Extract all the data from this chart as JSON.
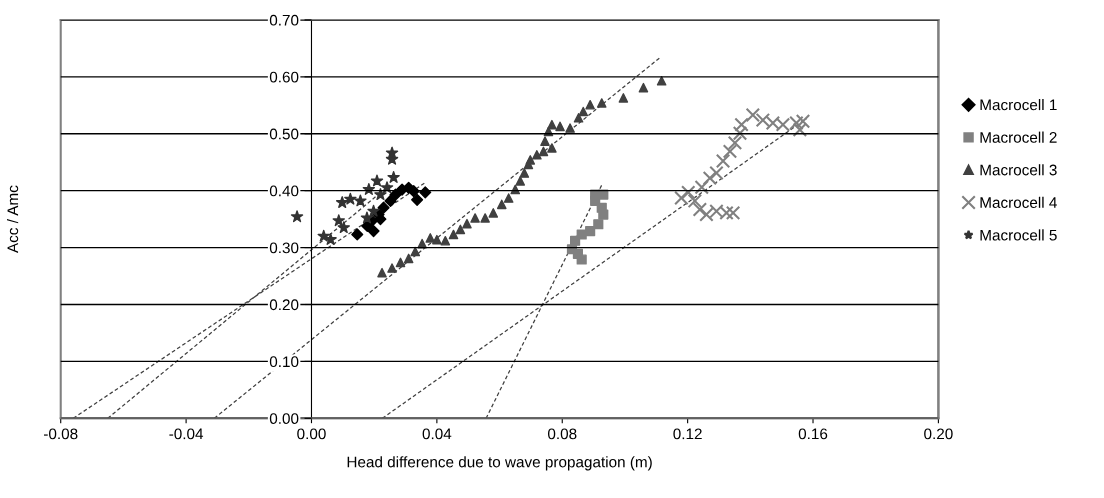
{
  "chart_data": {
    "type": "scatter",
    "xlabel": "Head difference due to wave propagation (m)",
    "ylabel": "Acc / Amc",
    "xlim": [
      -0.08,
      0.2
    ],
    "ylim": [
      0,
      0.7
    ],
    "xticks": [
      {
        "value": -0.08,
        "label": "-0.08"
      },
      {
        "value": -0.04,
        "label": "-0.04"
      },
      {
        "value": 0,
        "label": "0.00"
      },
      {
        "value": 0.04,
        "label": "0.04"
      },
      {
        "value": 0.08,
        "label": "0.08"
      },
      {
        "value": 0.12,
        "label": "0.12"
      },
      {
        "value": 0.16,
        "label": "0.16"
      },
      {
        "value": 0.2,
        "label": "0.20"
      }
    ],
    "yticks": [
      {
        "value": 0,
        "label": "0.00"
      },
      {
        "value": 0.1,
        "label": "0.10"
      },
      {
        "value": 0.2,
        "label": "0.20"
      },
      {
        "value": 0.3,
        "label": "0.30"
      },
      {
        "value": 0.4,
        "label": "0.40"
      },
      {
        "value": 0.5,
        "label": "0.50"
      },
      {
        "value": 0.6,
        "label": "0.60"
      },
      {
        "value": 0.7,
        "label": "0.70"
      }
    ],
    "grid": "y",
    "legend": "right",
    "series": [
      {
        "name": "Macrocell 1",
        "color": "#000000",
        "marker": "diamond",
        "x": [
          0.0146,
          0.0178,
          0.0198,
          0.0193,
          0.022,
          0.0214,
          0.023,
          0.0252,
          0.0268,
          0.0289,
          0.031,
          0.0326,
          0.0337,
          0.0363
        ],
        "values": [
          0.323,
          0.338,
          0.329,
          0.347,
          0.35,
          0.358,
          0.37,
          0.382,
          0.393,
          0.402,
          0.405,
          0.399,
          0.384,
          0.397
        ]
      },
      {
        "name": "Macrocell 2",
        "color": "#808080",
        "marker": "square",
        "x": [
          0.0862,
          0.085,
          0.0831,
          0.0841,
          0.0862,
          0.0889,
          0.0915,
          0.0931,
          0.0926,
          0.0905,
          0.0905,
          0.0931
        ],
        "values": [
          0.279,
          0.289,
          0.297,
          0.312,
          0.323,
          0.329,
          0.341,
          0.358,
          0.37,
          0.382,
          0.393,
          0.393
        ]
      },
      {
        "name": "Macrocell 3",
        "color": "#404040",
        "marker": "triangle",
        "x": [
          0.0225,
          0.0257,
          0.0284,
          0.031,
          0.0331,
          0.0353,
          0.0379,
          0.04,
          0.0427,
          0.0453,
          0.0475,
          0.0496,
          0.0522,
          0.0554,
          0.058,
          0.0607,
          0.0629,
          0.065,
          0.0666,
          0.0679,
          0.0692,
          0.0698,
          0.0719,
          0.074,
          0.0767,
          0.0745,
          0.0756,
          0.0767,
          0.0793,
          0.0825,
          0.0852,
          0.0867,
          0.0889,
          0.0926,
          0.0995,
          0.1059,
          0.1117
        ],
        "values": [
          0.256,
          0.264,
          0.274,
          0.281,
          0.293,
          0.307,
          0.317,
          0.314,
          0.312,
          0.323,
          0.332,
          0.342,
          0.352,
          0.352,
          0.361,
          0.376,
          0.387,
          0.402,
          0.417,
          0.431,
          0.446,
          0.454,
          0.463,
          0.469,
          0.475,
          0.487,
          0.504,
          0.516,
          0.513,
          0.51,
          0.528,
          0.539,
          0.551,
          0.554,
          0.563,
          0.581,
          0.593
        ]
      },
      {
        "name": "Macrocell 4",
        "color": "#808080",
        "marker": "cross",
        "x": [
          0.1345,
          0.1324,
          0.1292,
          0.126,
          0.1239,
          0.1223,
          0.118,
          0.1202,
          0.1245,
          0.1271,
          0.1292,
          0.1313,
          0.1335,
          0.1351,
          0.1367,
          0.1372,
          0.1408,
          0.144,
          0.1472,
          0.1504,
          0.1558,
          0.1547,
          0.1568
        ],
        "values": [
          0.361,
          0.361,
          0.364,
          0.358,
          0.367,
          0.382,
          0.387,
          0.397,
          0.406,
          0.422,
          0.431,
          0.452,
          0.469,
          0.484,
          0.501,
          0.516,
          0.533,
          0.524,
          0.519,
          0.516,
          0.507,
          0.519,
          0.522
        ]
      },
      {
        "name": "Macrocell 5",
        "color": "#333333",
        "marker": "star",
        "x": [
          -0.0046,
          0.0039,
          0.0061,
          0.0087,
          0.0103,
          0.0098,
          0.0124,
          0.0156,
          0.0177,
          0.0198,
          0.0183,
          0.0209,
          0.022,
          0.0241,
          0.0262,
          0.0257,
          0.0257
        ],
        "values": [
          0.354,
          0.32,
          0.314,
          0.347,
          0.335,
          0.379,
          0.385,
          0.382,
          0.352,
          0.364,
          0.402,
          0.417,
          0.393,
          0.405,
          0.423,
          0.455,
          0.466
        ]
      },
      {
        "type": "line",
        "color": "#404040",
        "line_style": "dashed",
        "x": [
          -0.076,
          0.036
        ],
        "values": [
          0,
          0.413
        ]
      },
      {
        "type": "line",
        "color": "#404040",
        "line_style": "dashed",
        "x": [
          -0.065,
          0.025
        ],
        "values": [
          0,
          0.41
        ]
      },
      {
        "type": "line",
        "color": "#404040",
        "line_style": "dashed",
        "x": [
          0.0557,
          0.0927
        ],
        "values": [
          0,
          0.411
        ]
      },
      {
        "type": "line",
        "color": "#404040",
        "line_style": "dashed",
        "x": [
          -0.031,
          0.111
        ],
        "values": [
          0,
          0.633
        ]
      },
      {
        "type": "line",
        "color": "#404040",
        "line_style": "dashed",
        "x": [
          0.0226,
          0.158
        ],
        "values": [
          0,
          0.527
        ]
      }
    ]
  }
}
